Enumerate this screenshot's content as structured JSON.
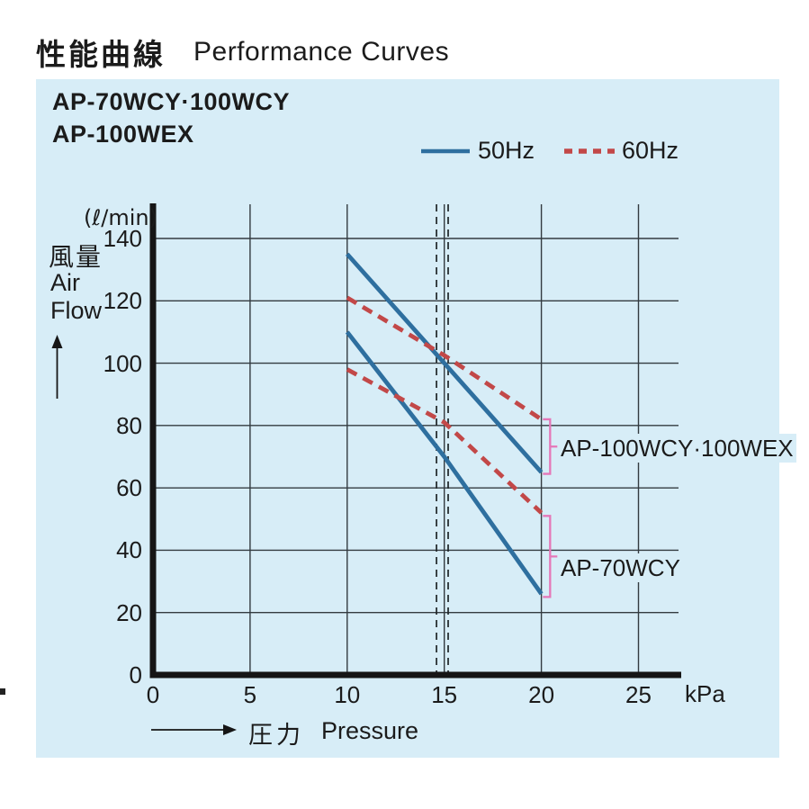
{
  "header": {
    "title_ja": "性能曲線",
    "title_en": "Performance Curves"
  },
  "panel": {
    "bg_color": "#d7edf7",
    "model_line1": "AP-70WCY·100WCY",
    "model_line2": "AP-100WEX"
  },
  "legend": {
    "items": [
      {
        "label": "50Hz",
        "style": "solid",
        "color": "#2e6f9f"
      },
      {
        "label": "60Hz",
        "style": "dashed",
        "color": "#c24848"
      }
    ]
  },
  "axes": {
    "y_unit": "(ℓ/min)",
    "y_label_ja": "風量",
    "y_label_en": "Air Flow",
    "x_label_ja": "圧力",
    "x_label_en": "Pressure",
    "x_unit": "kPa"
  },
  "chart_data": {
    "type": "line",
    "title": "Performance Curves",
    "xlabel": "Pressure (kPa)",
    "ylabel": "Air Flow (ℓ/min)",
    "xlim": [
      0,
      27.2
    ],
    "ylim": [
      0,
      151
    ],
    "xticks": [
      0,
      5,
      10,
      15,
      20,
      25
    ],
    "yticks": [
      0,
      20,
      40,
      60,
      80,
      100,
      120,
      140
    ],
    "grid": true,
    "legend_position": "top",
    "reference_lines_x": [
      14.6,
      15.2
    ],
    "series": [
      {
        "name": "AP-100WCY·100WEX 50Hz",
        "freq": "50Hz",
        "style": "solid",
        "color": "#2e6f9f",
        "points": [
          [
            10,
            135
          ],
          [
            15,
            100
          ],
          [
            20,
            65
          ]
        ]
      },
      {
        "name": "AP-100WCY·100WEX 60Hz",
        "freq": "60Hz",
        "style": "dashed",
        "color": "#c24848",
        "points": [
          [
            10,
            121
          ],
          [
            15,
            102.5
          ],
          [
            20,
            82
          ]
        ]
      },
      {
        "name": "AP-70WCY 50Hz",
        "freq": "50Hz",
        "style": "solid",
        "color": "#2e6f9f",
        "points": [
          [
            10,
            110
          ],
          [
            15,
            70
          ],
          [
            20,
            26
          ]
        ]
      },
      {
        "name": "AP-70WCY 60Hz",
        "freq": "60Hz",
        "style": "dashed",
        "color": "#c24848",
        "points": [
          [
            10,
            98
          ],
          [
            15,
            81
          ],
          [
            20,
            52
          ]
        ]
      }
    ],
    "annotations": [
      {
        "label": "AP-100WCY·100WEX",
        "bracket_y_top": 82,
        "bracket_y_bottom": 64.5,
        "bracket_x": 20.45
      },
      {
        "label": "AP-70WCY",
        "bracket_y_top": 51,
        "bracket_y_bottom": 25,
        "bracket_x": 20.45
      }
    ],
    "bracket_color": "#e577b8"
  }
}
